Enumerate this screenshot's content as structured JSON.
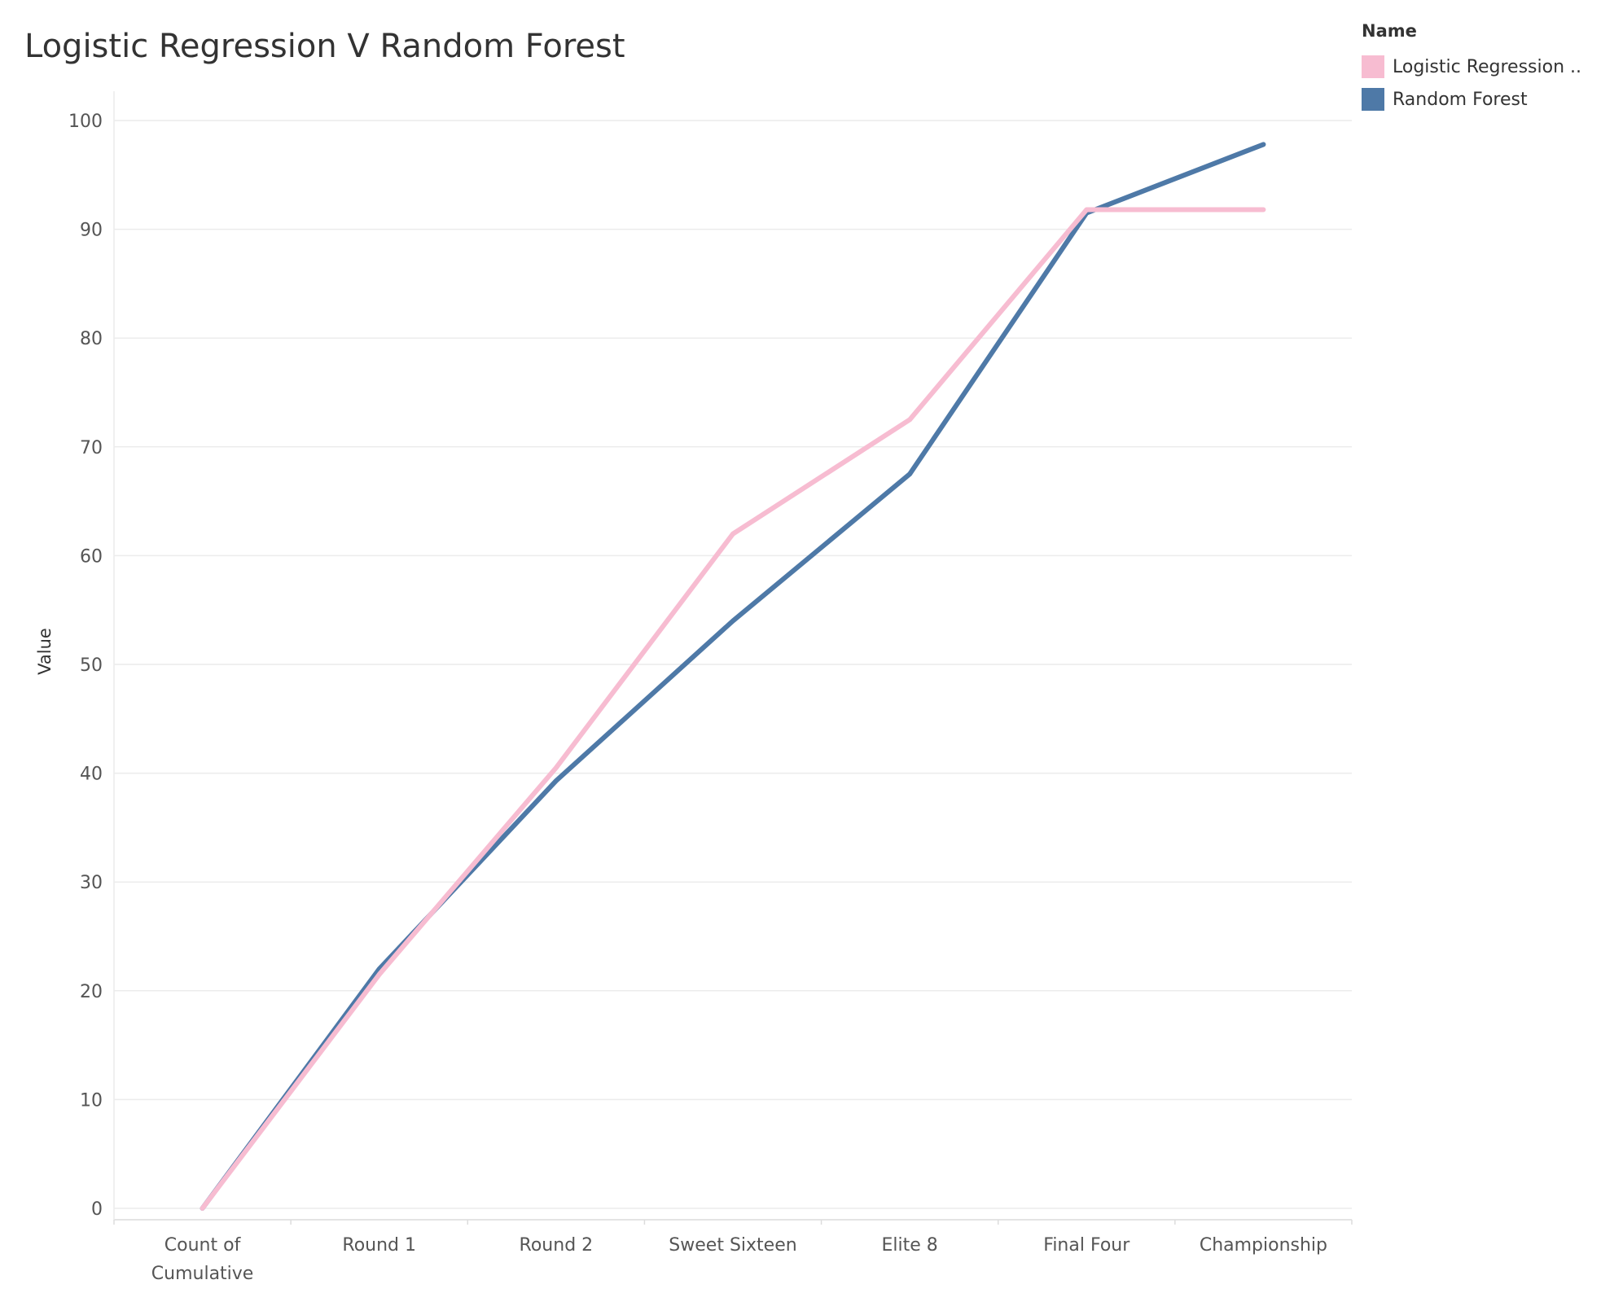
{
  "chart_data": {
    "type": "line",
    "title": "Logistic Regression V Random Forest",
    "ylabel": "Value",
    "xlabel": "",
    "categories": [
      [
        "Count of",
        "Cumulative"
      ],
      [
        "Round 1"
      ],
      [
        "Round 2"
      ],
      [
        "Sweet Sixteen"
      ],
      [
        "Elite 8"
      ],
      [
        "Final Four"
      ],
      [
        "Championship"
      ]
    ],
    "ylim": [
      0,
      100
    ],
    "yticks": [
      0,
      10,
      20,
      30,
      40,
      50,
      60,
      70,
      80,
      90,
      100
    ],
    "grid": true,
    "legend": {
      "title": "Name",
      "placement": "top-right",
      "entries": [
        "Logistic Regression ..",
        "Random Forest"
      ]
    },
    "series": [
      {
        "name": "Logistic Regression ..",
        "color": "#f7bcd1",
        "values": [
          0,
          21.5,
          40.5,
          62,
          72.5,
          91.8,
          91.8
        ]
      },
      {
        "name": "Random Forest",
        "color": "#4e79a7",
        "values": [
          0,
          22,
          39.3,
          54,
          67.5,
          91.5,
          97.8
        ]
      }
    ]
  }
}
